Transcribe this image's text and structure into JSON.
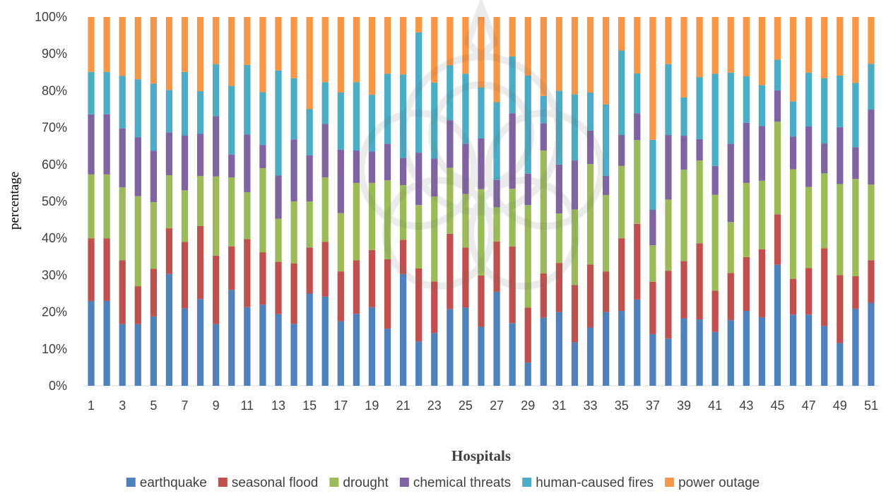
{
  "chart_data": {
    "type": "bar",
    "stacked": true,
    "percent_stacked": true,
    "xlabel": "Hospitals",
    "ylabel": "percentage",
    "ylim": [
      0,
      100
    ],
    "yticks": [
      "0%",
      "10%",
      "20%",
      "30%",
      "40%",
      "50%",
      "60%",
      "70%",
      "80%",
      "90%",
      "100%"
    ],
    "categories": [
      "1",
      "2",
      "3",
      "4",
      "5",
      "6",
      "7",
      "8",
      "9",
      "10",
      "11",
      "12",
      "13",
      "14",
      "15",
      "16",
      "17",
      "18",
      "19",
      "20",
      "21",
      "22",
      "23",
      "24",
      "25",
      "26",
      "27",
      "28",
      "29",
      "30",
      "31",
      "32",
      "33",
      "34",
      "35",
      "36",
      "37",
      "38",
      "39",
      "40",
      "41",
      "42",
      "43",
      "44",
      "45",
      "46",
      "47",
      "48",
      "49",
      "50",
      "51"
    ],
    "grid": false,
    "legend_position": "bottom",
    "series": [
      {
        "name": "earthquake",
        "color": "#4F81BD",
        "values": [
          23,
          23,
          16.7,
          16.7,
          18.8,
          30.3,
          21,
          23.5,
          16.7,
          26,
          21.3,
          22,
          19.4,
          16.8,
          25,
          24.2,
          17.5,
          19.5,
          21.3,
          15.5,
          30.3,
          12,
          14.3,
          20.8,
          21.2,
          16,
          25.5,
          17,
          6.3,
          18.5,
          20,
          11.8,
          15.8,
          20,
          20.3,
          23.4,
          14,
          12.8,
          18.3,
          18,
          14.6,
          17.8,
          20.3,
          18.6,
          32.8,
          19.3,
          19.3,
          16.2,
          11.6,
          20.9,
          22.5
        ]
      },
      {
        "name": "seasonal flood",
        "color": "#C0504D",
        "values": [
          17,
          17,
          17.3,
          10.3,
          12.9,
          12.4,
          18,
          19.8,
          18.6,
          11.8,
          18.5,
          14.2,
          14.2,
          16.4,
          12.5,
          14.8,
          13.5,
          14.5,
          15.5,
          18.8,
          9.3,
          19.8,
          14,
          20.4,
          16.3,
          13.9,
          13.6,
          20.8,
          14.9,
          12,
          13.3,
          15.5,
          17.1,
          11,
          19.7,
          20.5,
          14.2,
          18.4,
          15.5,
          20.6,
          11.2,
          12.8,
          14.6,
          18.4,
          13.7,
          9.7,
          12.6,
          21.1,
          18.4,
          8.8,
          11.5
        ]
      },
      {
        "name": "drought",
        "color": "#9BBB59",
        "values": [
          17.3,
          17.3,
          19.8,
          24.4,
          18.1,
          14.4,
          14,
          13.6,
          21.5,
          18.7,
          12.7,
          22.8,
          11.7,
          16.8,
          12.5,
          17.5,
          15.8,
          21,
          18.2,
          21.4,
          14.8,
          17.2,
          23,
          17.9,
          14.5,
          23.4,
          9.3,
          15.6,
          27.8,
          33.3,
          13.4,
          20.5,
          27.2,
          20.7,
          19.6,
          22.7,
          9.9,
          19.3,
          24.8,
          22.5,
          26,
          13.8,
          20.1,
          18.6,
          25.1,
          29.7,
          22,
          20.3,
          24.7,
          26.4,
          20.6
        ]
      },
      {
        "name": "chemical threats",
        "color": "#8064A2",
        "values": [
          16.3,
          16.3,
          16,
          16,
          13.9,
          11.6,
          14.9,
          11.4,
          16.3,
          6.2,
          15.6,
          6.3,
          11.7,
          16.8,
          12.5,
          14.5,
          17.2,
          8.8,
          8.5,
          9.9,
          7.4,
          14.2,
          10.3,
          12.9,
          13.6,
          13.8,
          7.4,
          20.5,
          8.5,
          7.4,
          13.3,
          13.3,
          9.1,
          5.2,
          8.4,
          7.3,
          9.6,
          17.5,
          9.2,
          5.8,
          7.8,
          21.2,
          16.3,
          14.8,
          8.5,
          8.9,
          16.4,
          8.1,
          15.4,
          8.6,
          20.3
        ]
      },
      {
        "name": "human-caused fires",
        "color": "#4BACC6",
        "values": [
          11.5,
          11.5,
          14.2,
          15.7,
          18.2,
          11.5,
          17.2,
          11.6,
          14.1,
          18.6,
          18.9,
          14.3,
          28.5,
          16.6,
          12.5,
          11.3,
          15.5,
          18.5,
          15.4,
          19,
          22.6,
          32.6,
          20.6,
          14.9,
          19,
          13.8,
          21.1,
          15.4,
          26.6,
          7.4,
          20,
          17.9,
          10.3,
          19.4,
          22.9,
          10.8,
          19,
          19.2,
          10.4,
          16.8,
          25,
          19.3,
          12.6,
          11.1,
          8.3,
          9.5,
          14.6,
          17.7,
          14,
          17.4,
          12.4
        ]
      },
      {
        "name": "power outage",
        "color": "#F79646",
        "values": [
          14.9,
          14.9,
          16,
          16.9,
          18.1,
          19.8,
          14.9,
          20.1,
          12.8,
          18.7,
          13,
          20.4,
          14.5,
          16.6,
          25,
          17.7,
          20.5,
          17.7,
          21.1,
          15.4,
          15.6,
          4.2,
          17.8,
          13.1,
          15.4,
          19.1,
          23.1,
          10.7,
          15.9,
          21.4,
          20,
          21,
          20.5,
          23.7,
          9.1,
          15.3,
          33.3,
          12.8,
          21.8,
          16.3,
          15.4,
          15.1,
          16.1,
          18.5,
          11.6,
          22.9,
          15.1,
          16.6,
          15.9,
          17.9,
          12.7
        ]
      }
    ]
  }
}
